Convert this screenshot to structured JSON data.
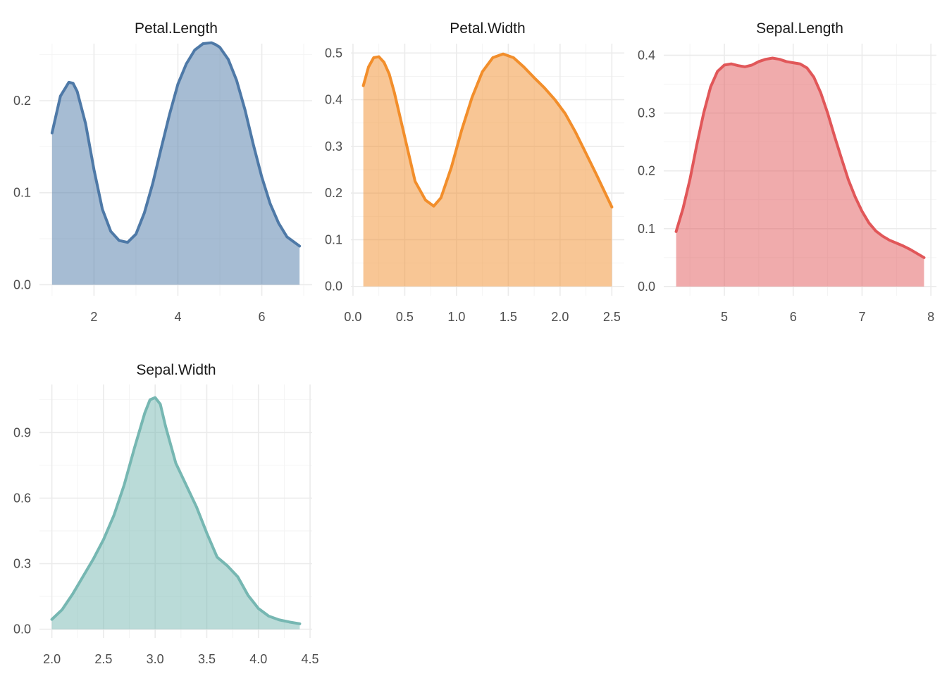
{
  "chart_data": [
    {
      "type": "area",
      "title": "Petal.Length",
      "color": "#4E79A7",
      "xlim": [
        0.7,
        7.2
      ],
      "ylim": [
        -0.012,
        0.262
      ],
      "xticks": [
        2,
        4,
        6
      ],
      "xtick_labels": [
        "2",
        "4",
        "6"
      ],
      "xminor": [
        1,
        3,
        5,
        7
      ],
      "yticks": [
        0.0,
        0.1,
        0.2
      ],
      "ytick_labels": [
        "0.0",
        "0.1",
        "0.2"
      ],
      "yminor": [
        0.05,
        0.15,
        0.25
      ],
      "x": [
        1.0,
        1.2,
        1.4,
        1.5,
        1.6,
        1.8,
        2.0,
        2.2,
        2.4,
        2.6,
        2.8,
        3.0,
        3.2,
        3.4,
        3.6,
        3.8,
        4.0,
        4.2,
        4.4,
        4.6,
        4.8,
        4.9,
        5.0,
        5.2,
        5.4,
        5.6,
        5.8,
        6.0,
        6.2,
        6.4,
        6.6,
        6.9
      ],
      "y": [
        0.165,
        0.205,
        0.22,
        0.219,
        0.21,
        0.175,
        0.125,
        0.082,
        0.058,
        0.048,
        0.046,
        0.055,
        0.078,
        0.11,
        0.148,
        0.185,
        0.218,
        0.24,
        0.255,
        0.262,
        0.263,
        0.261,
        0.258,
        0.245,
        0.222,
        0.19,
        0.152,
        0.117,
        0.088,
        0.067,
        0.052,
        0.042
      ]
    },
    {
      "type": "area",
      "title": "Petal.Width",
      "color": "#F28E2B",
      "xlim": [
        -0.02,
        2.62
      ],
      "ylim": [
        -0.02,
        0.52
      ],
      "xticks": [
        0.0,
        0.5,
        1.0,
        1.5,
        2.0,
        2.5
      ],
      "xtick_labels": [
        "0.0",
        "0.5",
        "1.0",
        "1.5",
        "2.0",
        "2.5"
      ],
      "xminor": [
        0.25,
        0.75,
        1.25,
        1.75,
        2.25
      ],
      "yticks": [
        0.0,
        0.1,
        0.2,
        0.3,
        0.4,
        0.5
      ],
      "ytick_labels": [
        "0.0",
        "0.1",
        "0.2",
        "0.3",
        "0.4",
        "0.5"
      ],
      "yminor": [
        0.05,
        0.15,
        0.25,
        0.35,
        0.45
      ],
      "x": [
        0.1,
        0.15,
        0.2,
        0.25,
        0.3,
        0.35,
        0.4,
        0.5,
        0.6,
        0.7,
        0.78,
        0.85,
        0.95,
        1.05,
        1.15,
        1.25,
        1.35,
        1.45,
        1.55,
        1.65,
        1.75,
        1.85,
        1.95,
        2.05,
        2.15,
        2.25,
        2.35,
        2.5
      ],
      "y": [
        0.43,
        0.47,
        0.49,
        0.492,
        0.48,
        0.455,
        0.415,
        0.32,
        0.225,
        0.185,
        0.172,
        0.19,
        0.255,
        0.335,
        0.405,
        0.46,
        0.49,
        0.498,
        0.49,
        0.47,
        0.447,
        0.425,
        0.4,
        0.37,
        0.33,
        0.285,
        0.24,
        0.17
      ]
    },
    {
      "type": "area",
      "title": "Sepal.Length",
      "color": "#E15759",
      "xlim": [
        4.12,
        8.08
      ],
      "ylim": [
        -0.016,
        0.42
      ],
      "xticks": [
        5,
        6,
        7,
        8
      ],
      "xtick_labels": [
        "5",
        "6",
        "7",
        "8"
      ],
      "xminor": [
        4.5,
        5.5,
        6.5,
        7.5
      ],
      "yticks": [
        0.0,
        0.1,
        0.2,
        0.3,
        0.4
      ],
      "ytick_labels": [
        "0.0",
        "0.1",
        "0.2",
        "0.3",
        "0.4"
      ],
      "yminor": [
        0.05,
        0.15,
        0.25,
        0.35
      ],
      "x": [
        4.3,
        4.4,
        4.5,
        4.6,
        4.7,
        4.8,
        4.9,
        5.0,
        5.1,
        5.2,
        5.3,
        5.4,
        5.5,
        5.6,
        5.7,
        5.8,
        5.9,
        6.0,
        6.1,
        6.2,
        6.3,
        6.4,
        6.5,
        6.6,
        6.7,
        6.8,
        6.9,
        7.0,
        7.1,
        7.2,
        7.3,
        7.4,
        7.5,
        7.6,
        7.7,
        7.8,
        7.9
      ],
      "y": [
        0.095,
        0.135,
        0.185,
        0.245,
        0.3,
        0.345,
        0.372,
        0.383,
        0.385,
        0.382,
        0.38,
        0.383,
        0.389,
        0.393,
        0.395,
        0.393,
        0.389,
        0.387,
        0.385,
        0.378,
        0.362,
        0.335,
        0.3,
        0.26,
        0.222,
        0.185,
        0.155,
        0.13,
        0.11,
        0.096,
        0.087,
        0.08,
        0.075,
        0.07,
        0.064,
        0.057,
        0.05
      ]
    },
    {
      "type": "area",
      "title": "Sepal.Width",
      "color": "#76B7B2",
      "xlim": [
        1.88,
        4.52
      ],
      "ylim": [
        -0.04,
        1.12
      ],
      "xticks": [
        2.0,
        2.5,
        3.0,
        3.5,
        4.0,
        4.5
      ],
      "xtick_labels": [
        "2.0",
        "2.5",
        "3.0",
        "3.5",
        "4.0",
        "4.5"
      ],
      "xminor": [
        2.25,
        2.75,
        3.25,
        3.75,
        4.25
      ],
      "yticks": [
        0.0,
        0.3,
        0.6,
        0.9
      ],
      "ytick_labels": [
        "0.0",
        "0.3",
        "0.6",
        "0.9"
      ],
      "yminor": [
        0.15,
        0.45,
        0.75,
        1.05
      ],
      "x": [
        2.0,
        2.1,
        2.2,
        2.3,
        2.4,
        2.5,
        2.6,
        2.7,
        2.8,
        2.9,
        2.95,
        3.0,
        3.05,
        3.1,
        3.2,
        3.3,
        3.4,
        3.5,
        3.6,
        3.7,
        3.8,
        3.9,
        4.0,
        4.1,
        4.2,
        4.3,
        4.4
      ],
      "y": [
        0.045,
        0.09,
        0.16,
        0.24,
        0.32,
        0.41,
        0.52,
        0.66,
        0.83,
        0.99,
        1.05,
        1.06,
        1.03,
        0.93,
        0.76,
        0.66,
        0.56,
        0.44,
        0.33,
        0.29,
        0.24,
        0.155,
        0.095,
        0.06,
        0.043,
        0.033,
        0.025
      ]
    }
  ]
}
